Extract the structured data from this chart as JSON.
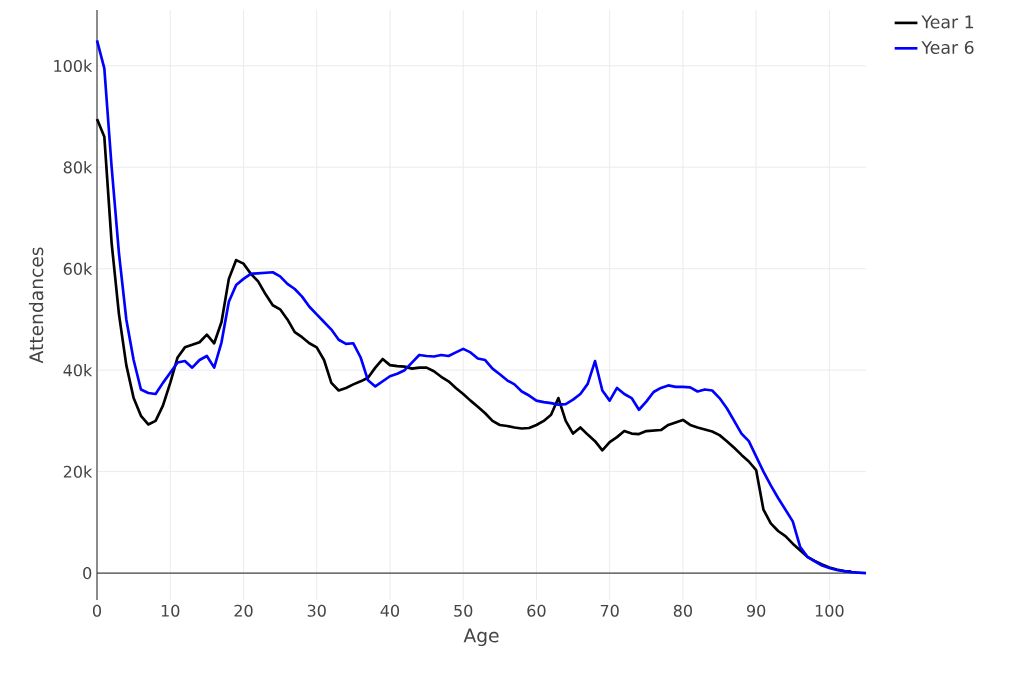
{
  "chart_data": {
    "type": "line",
    "xlabel": "Age",
    "ylabel": "Attendances",
    "x": [
      0,
      1,
      2,
      3,
      4,
      5,
      6,
      7,
      8,
      9,
      10,
      11,
      12,
      13,
      14,
      15,
      16,
      17,
      18,
      19,
      20,
      21,
      22,
      23,
      24,
      25,
      26,
      27,
      28,
      29,
      30,
      31,
      32,
      33,
      34,
      35,
      36,
      37,
      38,
      39,
      40,
      41,
      42,
      43,
      44,
      45,
      46,
      47,
      48,
      49,
      50,
      51,
      52,
      53,
      54,
      55,
      56,
      57,
      58,
      59,
      60,
      61,
      62,
      63,
      64,
      65,
      66,
      67,
      68,
      69,
      70,
      71,
      72,
      73,
      74,
      75,
      76,
      77,
      78,
      79,
      80,
      81,
      82,
      83,
      84,
      85,
      86,
      87,
      88,
      89,
      90,
      91,
      92,
      93,
      94,
      95,
      96,
      97,
      98,
      99,
      100,
      101,
      102,
      103,
      104,
      105
    ],
    "series": [
      {
        "name": "Year 1",
        "color": "#000000",
        "values": [
          89500,
          86000,
          65000,
          51000,
          41000,
          34500,
          31000,
          29300,
          30000,
          33000,
          37500,
          42500,
          44500,
          45000,
          45500,
          47000,
          45300,
          49500,
          58000,
          61700,
          61000,
          59000,
          57500,
          55000,
          52800,
          52000,
          50000,
          47500,
          46500,
          45300,
          44500,
          42000,
          37500,
          36000,
          36500,
          37200,
          37800,
          38500,
          40500,
          42200,
          41000,
          40800,
          40700,
          40300,
          40500,
          40500,
          39800,
          38700,
          37800,
          36500,
          35300,
          34000,
          32800,
          31500,
          30000,
          29200,
          29000,
          28700,
          28500,
          28600,
          29200,
          30000,
          31200,
          34500,
          30000,
          27500,
          28700,
          27300,
          26000,
          24200,
          25800,
          26800,
          28000,
          27500,
          27400,
          28000,
          28100,
          28200,
          29200,
          29700,
          30200,
          29200,
          28700,
          28300,
          27900,
          27200,
          26000,
          24700,
          23300,
          22000,
          20300,
          12500,
          9800,
          8300,
          7300,
          5800,
          4500,
          3200,
          2400,
          1700,
          1100,
          700,
          400,
          300,
          null,
          null
        ]
      },
      {
        "name": "Year 6",
        "color": "#0000ff",
        "values": [
          105000,
          99500,
          80000,
          63000,
          50000,
          42000,
          36200,
          35500,
          35300,
          37500,
          39500,
          41500,
          41800,
          40500,
          42000,
          42800,
          40500,
          45500,
          53500,
          56800,
          58000,
          59000,
          59100,
          59200,
          59300,
          58500,
          57000,
          56000,
          54500,
          52500,
          51000,
          49500,
          48000,
          46000,
          45200,
          45300,
          42500,
          38000,
          36800,
          37800,
          38800,
          39300,
          40000,
          41500,
          43000,
          42800,
          42700,
          43000,
          42800,
          43500,
          44200,
          43500,
          42300,
          42000,
          40300,
          39200,
          38000,
          37200,
          35800,
          35000,
          34000,
          33700,
          33500,
          33200,
          33300,
          34200,
          35300,
          37300,
          41800,
          36000,
          34000,
          36500,
          35300,
          34500,
          32200,
          33800,
          35700,
          36500,
          37000,
          36700,
          36700,
          36600,
          35800,
          36200,
          36000,
          34500,
          32500,
          30000,
          27500,
          26000,
          23000,
          20000,
          17300,
          14800,
          12500,
          10200,
          5200,
          3200,
          2300,
          1500,
          1000,
          600,
          400,
          200,
          100,
          0
        ]
      }
    ],
    "xlim": [
      0,
      105
    ],
    "ylim": [
      -5300,
      111000
    ],
    "xticks": [
      0,
      10,
      20,
      30,
      40,
      50,
      60,
      70,
      80,
      90,
      100
    ],
    "yticks": [
      0,
      {
        "value": 20000,
        "label": "20k"
      },
      {
        "value": 40000,
        "label": "40k"
      },
      {
        "value": 60000,
        "label": "60k"
      },
      {
        "value": 80000,
        "label": "80k"
      },
      {
        "value": 100000,
        "label": "100k"
      }
    ],
    "grid": true,
    "legend": "top right",
    "marker": "none",
    "line_style": "solid"
  }
}
